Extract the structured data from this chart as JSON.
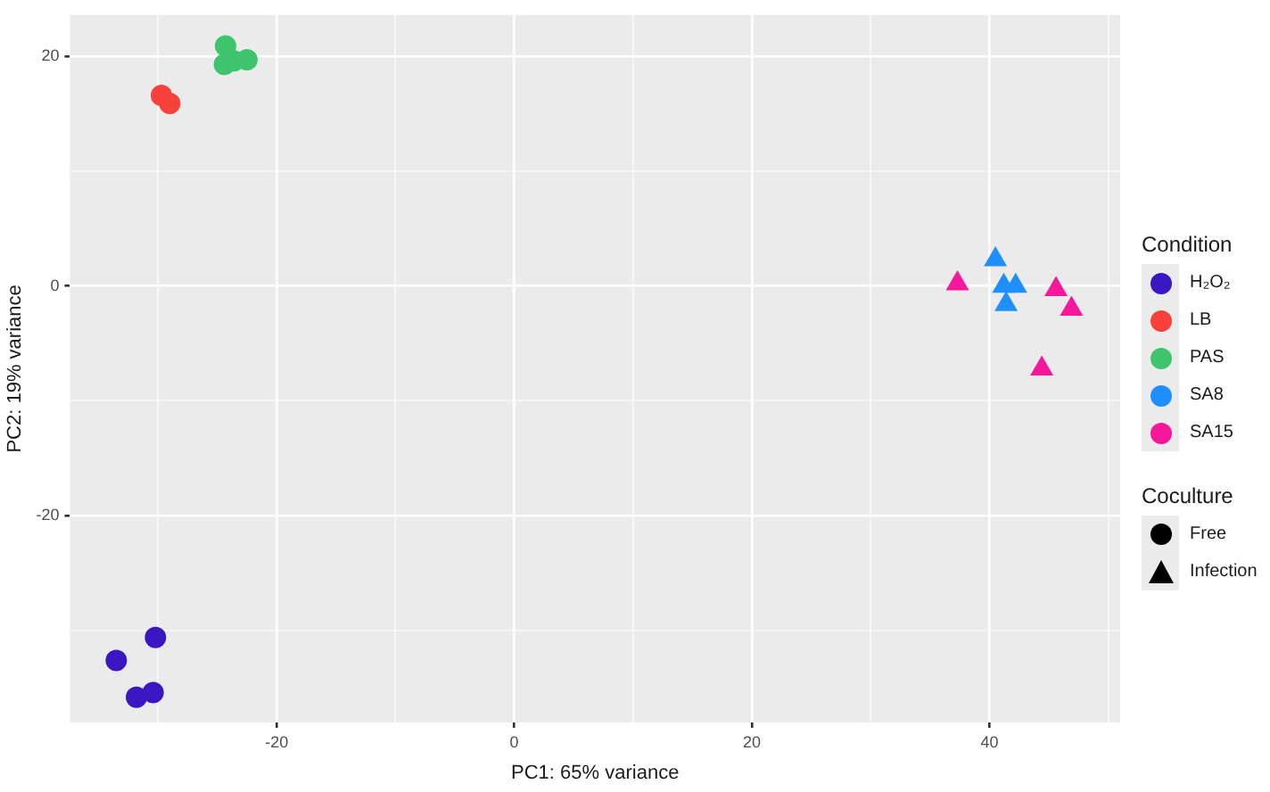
{
  "chart_data": {
    "type": "scatter",
    "xlabel": "PC1: 65% variance",
    "ylabel": "PC2: 19% variance",
    "legend_title": "Condition",
    "legend": "right",
    "grid": true,
    "xlim": [
      -37.4,
      51
    ],
    "ylim": [
      -38,
      23.6
    ],
    "xticks": [
      {
        "value": -30,
        "label": null
      },
      -20,
      {
        "value": -10,
        "label": null
      },
      0,
      {
        "value": 10,
        "label": null
      },
      20,
      {
        "value": 30,
        "label": null
      },
      40,
      {
        "value": 50,
        "label": null
      }
    ],
    "yticks": [
      {
        "value": -30,
        "label": null
      },
      -20,
      {
        "value": -10,
        "label": null
      },
      0,
      {
        "value": 10,
        "label": null
      },
      20
    ],
    "series": [
      {
        "name": "H₂O₂",
        "color": "#3b17c4",
        "marker": "circle",
        "x": [
          -30.2,
          -33.5,
          -31.8,
          -30.4
        ],
        "values": [
          -30.6,
          -32.6,
          -35.8,
          -35.4
        ]
      },
      {
        "name": "LB",
        "color": "#f8413b",
        "marker": "circle",
        "x": [
          -29.7,
          -29.0
        ],
        "values": [
          16.6,
          15.9
        ]
      },
      {
        "name": "PAS",
        "color": "#3ec46d",
        "marker": "circle",
        "x": [
          -24.3,
          -24.4,
          -22.5,
          -23.6
        ],
        "values": [
          20.9,
          19.3,
          19.7,
          19.6
        ]
      },
      {
        "name": "SA8",
        "color": "#1f8fff",
        "marker": "triangle",
        "x": [
          40.5,
          41.2,
          42.2,
          41.4
        ],
        "values": [
          2.3,
          0,
          0,
          -1.6
        ]
      },
      {
        "name": "SA15",
        "color": "#f7179b",
        "marker": "triangle",
        "x": [
          37.3,
          45.6,
          46.9,
          44.4
        ],
        "values": [
          0.2,
          -0.3,
          -2.0,
          -7.2
        ]
      }
    ],
    "annotations": [
      "Coculture",
      "Free",
      "Infection"
    ]
  }
}
